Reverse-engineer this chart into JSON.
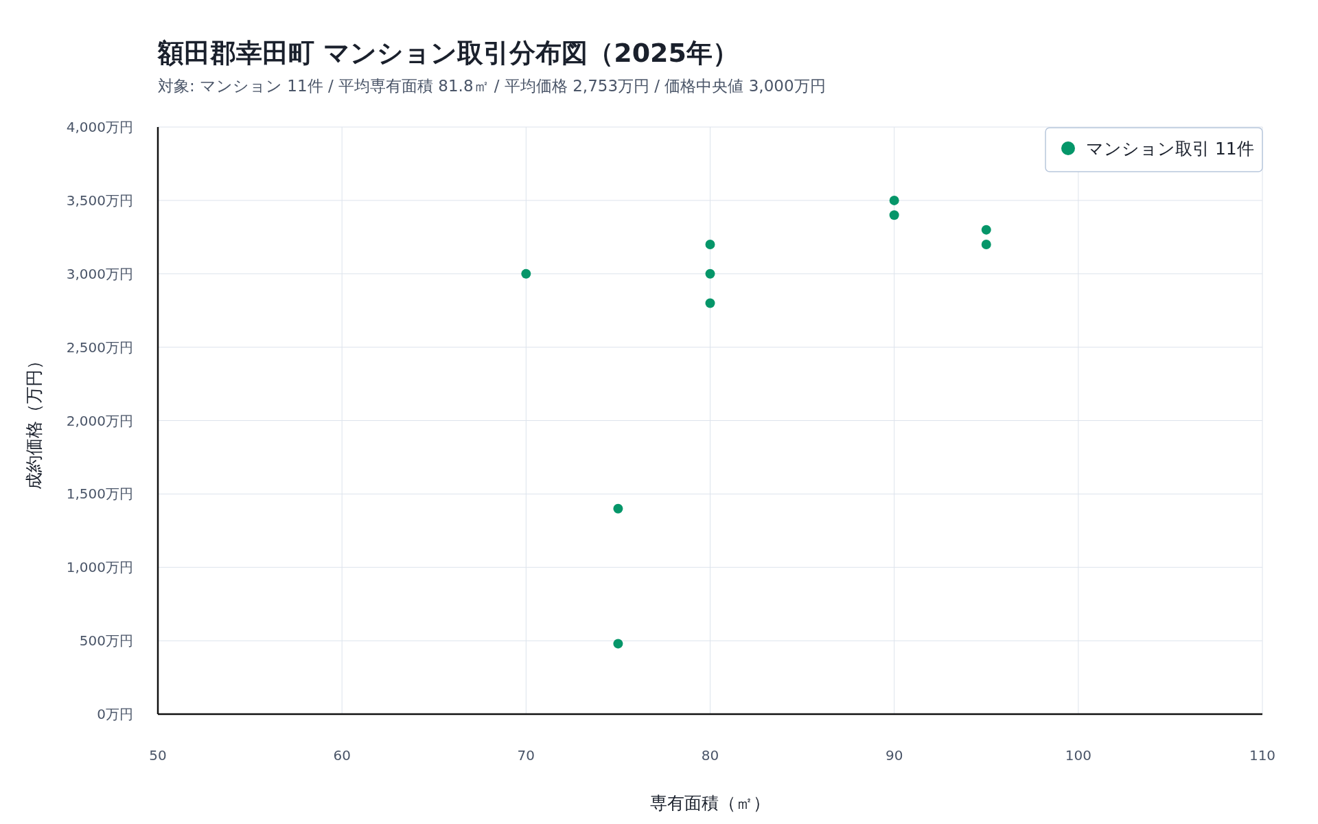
{
  "chart_data": {
    "type": "scatter",
    "title": "額田郡幸田町 マンション取引分布図（2025年）",
    "subtitle": "対象: マンション 11件 / 平均専有面積 81.8㎡ / 平均価格 2,753万円 / 価格中央値 3,000万円",
    "xlabel": "専有面積（㎡）",
    "ylabel": "成約価格（万円）",
    "series": [
      {
        "name": "マンション取引 11件",
        "color": "#059669",
        "x": [
          70,
          75,
          75,
          80,
          80,
          80,
          90,
          90,
          95,
          95
        ],
        "values": [
          3000,
          1400,
          480,
          3200,
          3000,
          2800,
          3500,
          3400,
          3300,
          3200
        ]
      }
    ],
    "xlim": [
      50,
      110
    ],
    "xticks": [
      50,
      60,
      70,
      80,
      90,
      100,
      110
    ],
    "ylim": [
      0,
      4000
    ],
    "yticks": [
      {
        "value": 0,
        "label": "0万円"
      },
      {
        "value": 500,
        "label": "500万円"
      },
      {
        "value": 1000,
        "label": "1,000万円"
      },
      {
        "value": 1500,
        "label": "1,500万円"
      },
      {
        "value": 2000,
        "label": "2,000万円"
      },
      {
        "value": 2500,
        "label": "2,500万円"
      },
      {
        "value": 3000,
        "label": "3,000万円"
      },
      {
        "value": 3500,
        "label": "3,500万円"
      },
      {
        "value": 4000,
        "label": "4,000万円"
      }
    ],
    "grid": true,
    "legend": "top right",
    "marker": "circle"
  }
}
